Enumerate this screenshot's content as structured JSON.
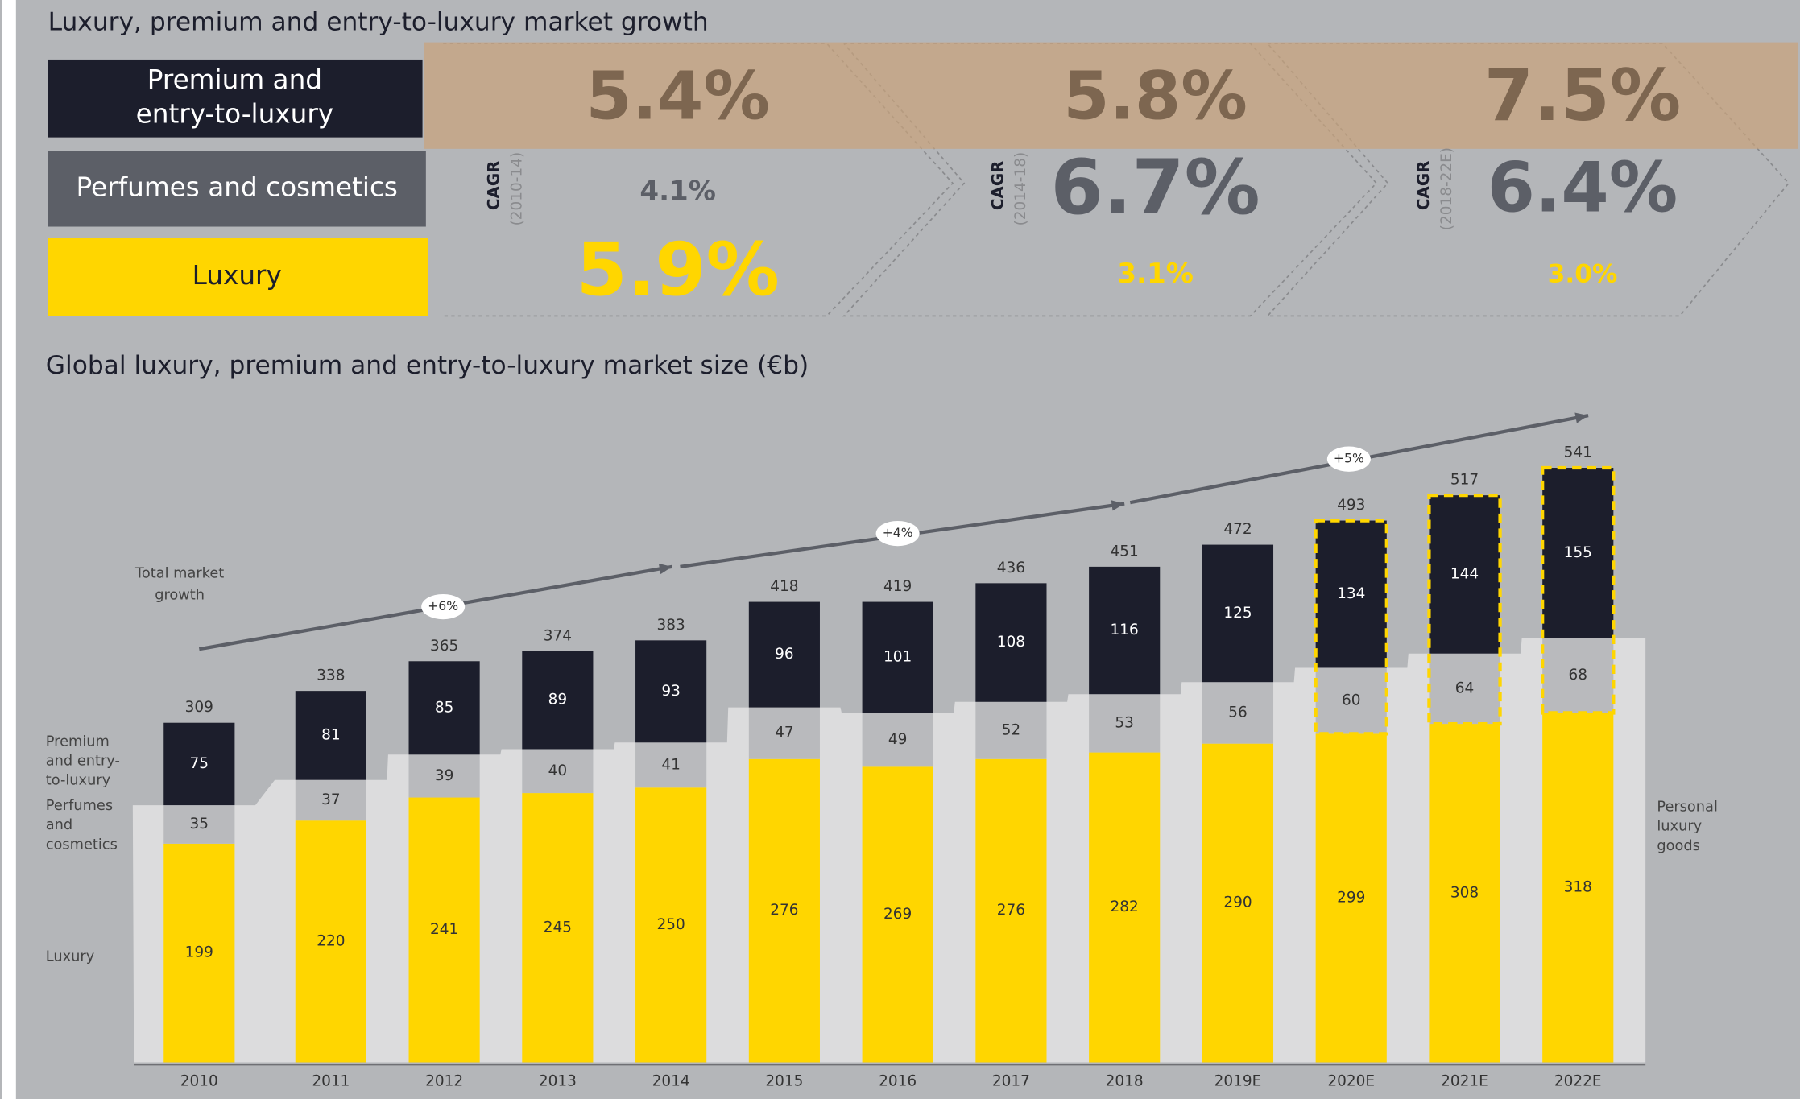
{
  "header": {
    "title": "Luxury, premium and entry-to-luxury market growth",
    "cagr_label": "CAGR",
    "periods": [
      "(2010-14)",
      "(2014-18)",
      "(2018-22E)"
    ],
    "rows": [
      {
        "name": "Premium and entry-to-luxury",
        "values": [
          "5.4%",
          "5.8%",
          "7.5%"
        ]
      },
      {
        "name": "Perfumes and cosmetics",
        "values": [
          "4.1%",
          "6.7%",
          "6.4%"
        ]
      },
      {
        "name": "Luxury",
        "values": [
          "5.9%",
          "3.1%",
          "3.0%"
        ]
      }
    ]
  },
  "chart_data": {
    "type": "stacked_bar",
    "title": "Global luxury, premium and entry-to-luxury market size (€b)",
    "categories": [
      "2010",
      "2011",
      "2012",
      "2013",
      "2014",
      "2015",
      "2016",
      "2017",
      "2018",
      "2019E",
      "2020E",
      "2021E",
      "2022E"
    ],
    "series": [
      {
        "name": "Luxury",
        "color": "#ffd600",
        "text_color": "#333333",
        "values": [
          199,
          220,
          241,
          245,
          250,
          276,
          269,
          276,
          282,
          290,
          299,
          308,
          318
        ]
      },
      {
        "name": "Perfumes and cosmetics",
        "color": "#b9babd",
        "text_color": "#333333",
        "values": [
          35,
          37,
          39,
          40,
          41,
          47,
          49,
          52,
          53,
          56,
          60,
          64,
          68
        ]
      },
      {
        "name": "Premium and entry-to-luxury",
        "color": "#1c1e2c",
        "text_color": "#ffffff",
        "values": [
          75,
          81,
          85,
          89,
          93,
          96,
          101,
          108,
          116,
          125,
          134,
          144,
          155
        ]
      }
    ],
    "totals": [
      309,
      338,
      365,
      374,
      383,
      418,
      419,
      436,
      451,
      472,
      493,
      517,
      541
    ],
    "dashed_outline": [
      false,
      false,
      false,
      false,
      false,
      false,
      false,
      false,
      false,
      false,
      true,
      true,
      true
    ],
    "side_labels": [
      [
        "Premium",
        "and entry-",
        "to-luxury"
      ],
      [
        "Perfumes",
        "and",
        "cosmetics"
      ],
      [
        "Luxury"
      ]
    ],
    "right_label": [
      "Personal",
      "luxury",
      "goods"
    ],
    "growth_label": [
      "Total market",
      "growth"
    ],
    "growth_rates": [
      "+6%",
      "+4%",
      "+5%"
    ]
  }
}
